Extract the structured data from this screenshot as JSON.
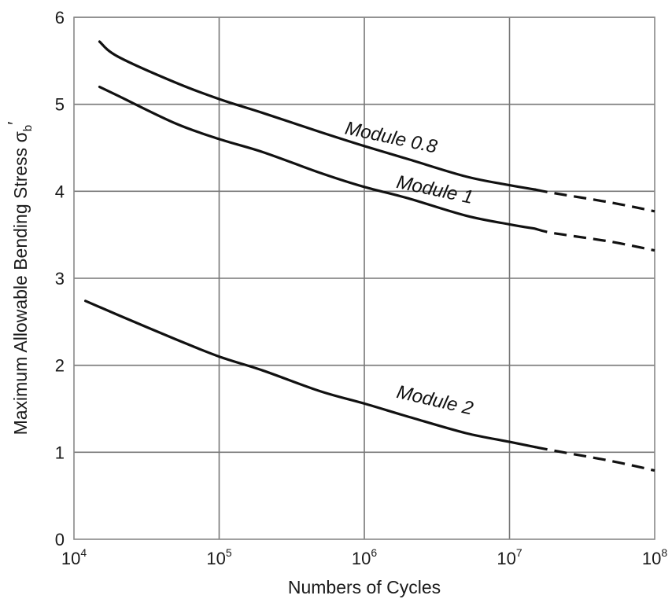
{
  "chart_data": {
    "type": "line",
    "title": "",
    "xlabel": "Numbers of Cycles",
    "ylabel": "Maximum Allowable Bending Stress σ",
    "ylabel_subscript": "b",
    "ylabel_suffix": "′",
    "x_scale": "log",
    "xlim": [
      10000,
      100000000
    ],
    "ylim": [
      0,
      6
    ],
    "grid": true,
    "legend": "none",
    "x_ticks": [
      {
        "value": 10000,
        "base": "10",
        "exp": "4"
      },
      {
        "value": 100000,
        "base": "10",
        "exp": "5"
      },
      {
        "value": 1000000,
        "base": "10",
        "exp": "6"
      },
      {
        "value": 10000000,
        "base": "10",
        "exp": "7"
      },
      {
        "value": 100000000,
        "base": "10",
        "exp": "8"
      }
    ],
    "y_ticks": [
      {
        "value": 0,
        "label": "0"
      },
      {
        "value": 1,
        "label": "1"
      },
      {
        "value": 2,
        "label": "2"
      },
      {
        "value": 3,
        "label": "3"
      },
      {
        "value": 4,
        "label": "4"
      },
      {
        "value": 5,
        "label": "5"
      },
      {
        "value": 6,
        "label": "6"
      }
    ],
    "series": [
      {
        "name": "Module 0.8",
        "solid": [
          [
            15000,
            5.72
          ],
          [
            20000,
            5.55
          ],
          [
            50000,
            5.25
          ],
          [
            100000,
            5.06
          ],
          [
            200000,
            4.9
          ],
          [
            500000,
            4.68
          ],
          [
            1000000,
            4.52
          ],
          [
            2000000,
            4.37
          ],
          [
            5000000,
            4.17
          ],
          [
            10000000,
            4.07
          ],
          [
            15000000,
            4.02
          ]
        ],
        "dashed": [
          [
            15000000,
            4.02
          ],
          [
            20000000,
            3.98
          ],
          [
            50000000,
            3.87
          ],
          [
            100000000,
            3.77
          ]
        ]
      },
      {
        "name": "Module 1",
        "solid": [
          [
            15000,
            5.2
          ],
          [
            20000,
            5.1
          ],
          [
            50000,
            4.78
          ],
          [
            100000,
            4.6
          ],
          [
            200000,
            4.45
          ],
          [
            500000,
            4.21
          ],
          [
            1000000,
            4.05
          ],
          [
            2000000,
            3.92
          ],
          [
            5000000,
            3.72
          ],
          [
            10000000,
            3.62
          ],
          [
            15000000,
            3.57
          ]
        ],
        "dashed": [
          [
            15000000,
            3.57
          ],
          [
            20000000,
            3.52
          ],
          [
            50000000,
            3.42
          ],
          [
            100000000,
            3.32
          ]
        ]
      },
      {
        "name": "Module 2",
        "solid": [
          [
            12000,
            2.74
          ],
          [
            20000,
            2.58
          ],
          [
            50000,
            2.3
          ],
          [
            100000,
            2.1
          ],
          [
            200000,
            1.94
          ],
          [
            500000,
            1.7
          ],
          [
            1000000,
            1.56
          ],
          [
            2000000,
            1.41
          ],
          [
            5000000,
            1.22
          ],
          [
            10000000,
            1.12
          ],
          [
            15000000,
            1.06
          ]
        ],
        "dashed": [
          [
            15000000,
            1.06
          ],
          [
            20000000,
            1.02
          ],
          [
            50000000,
            0.9
          ],
          [
            100000000,
            0.79
          ]
        ]
      }
    ],
    "annotations": [
      {
        "series": "Module 0.8",
        "text": "Module 0.8",
        "at": [
          1500000,
          4.55
        ],
        "angle": 12
      },
      {
        "series": "Module 1",
        "text": "Module 1",
        "at": [
          3000000,
          3.95
        ],
        "angle": 12
      },
      {
        "series": "Module 2",
        "text": "Module 2",
        "at": [
          3000000,
          1.53
        ],
        "angle": 13
      }
    ]
  }
}
